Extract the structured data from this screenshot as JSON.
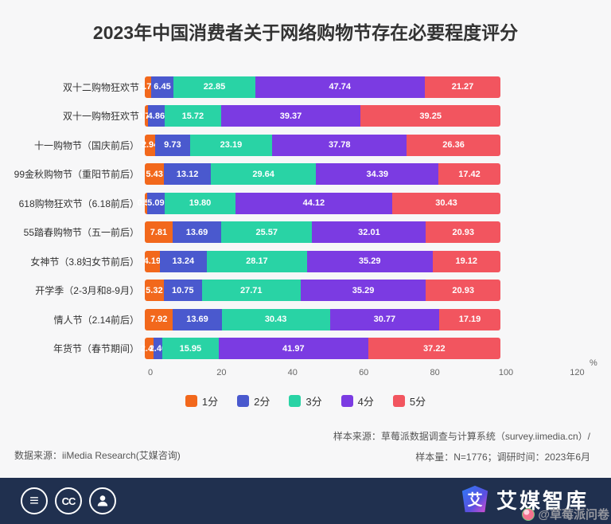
{
  "title": "2023年中国消费者关于网络购物节存在必要程度评分",
  "chart_data": {
    "type": "bar",
    "orientation": "horizontal",
    "stacked": true,
    "unit": "%",
    "xlim": [
      0,
      120
    ],
    "x_ticks": [
      "0",
      "20",
      "40",
      "60",
      "80",
      "100",
      "120"
    ],
    "categories": [
      "双十二购物狂欢节",
      "双十一购物狂欢节",
      "十一购物节（国庆前后）",
      "99金秋购物节（重阳节前后）",
      "618购物狂欢节（6.18前后）",
      "55踏春购物节（五一前后）",
      "女神节（3.8妇女节前后）",
      "开学季（2-3月和8-9月）",
      "情人节（2.14前后）",
      "年货节（春节期间）"
    ],
    "series": [
      {
        "name": "1分",
        "color": "#f2681c",
        "values": [
          "1.70",
          "0.79",
          "2.94",
          "5.43",
          "0.56",
          "7.81",
          "4.19",
          "5.32",
          "7.92",
          "2.46"
        ]
      },
      {
        "name": "2分",
        "color": "#4a59ce",
        "values": [
          "6.45",
          "4.86",
          "9.73",
          "13.12",
          "5.09",
          "13.69",
          "13.24",
          "10.75",
          "13.69",
          "2.40"
        ]
      },
      {
        "name": "3分",
        "color": "#29d3a5",
        "values": [
          "22.85",
          "15.72",
          "23.19",
          "29.64",
          "19.80",
          "25.57",
          "28.17",
          "27.71",
          "30.43",
          "15.95"
        ]
      },
      {
        "name": "4分",
        "color": "#7b3be2",
        "values": [
          "47.74",
          "39.37",
          "37.78",
          "34.39",
          "44.12",
          "32.01",
          "35.29",
          "35.29",
          "30.77",
          "41.97"
        ]
      },
      {
        "name": "5分",
        "color": "#f2555f",
        "values": [
          "21.27",
          "39.25",
          "26.36",
          "17.42",
          "30.43",
          "20.93",
          "19.12",
          "20.93",
          "17.19",
          "37.22"
        ]
      }
    ],
    "legend_position": "bottom",
    "grid": false
  },
  "notes": {
    "sample_source": "样本来源：草莓派数据调查与计算系统（survey.iimedia.cn）/",
    "sample_info": "样本量：N=1776；调研时间：2023年6月",
    "data_source": "数据来源：iiMedia Research(艾媒咨询)"
  },
  "footer_bar": {
    "brand": "艾媒智库",
    "logo_glyph": "艾",
    "cc_label": "CC",
    "menu_glyph": "≡",
    "watermark": "@草莓派问卷"
  }
}
